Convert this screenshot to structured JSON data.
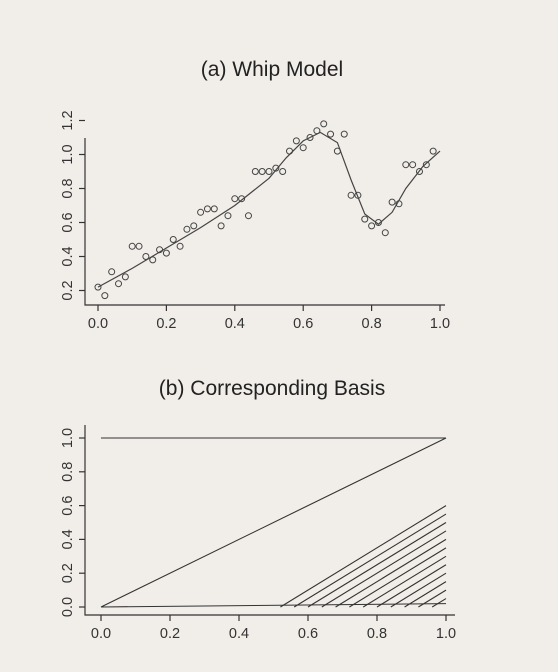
{
  "chart_data": [
    {
      "type": "scatter",
      "title": "(a) Whip Model",
      "xlim": [
        0.0,
        1.0
      ],
      "ylim": [
        0.15,
        1.25
      ],
      "x_ticks": [
        "0.0",
        "0.2",
        "0.4",
        "0.6",
        "0.8",
        "1.0"
      ],
      "y_ticks": [
        "0.2",
        "0.4",
        "0.6",
        "0.8",
        "1.0",
        "1.2"
      ],
      "series": [
        {
          "points": [
            [
              0.0,
              0.22
            ],
            [
              0.02,
              0.17
            ],
            [
              0.04,
              0.31
            ],
            [
              0.06,
              0.24
            ],
            [
              0.08,
              0.28
            ],
            [
              0.1,
              0.46
            ],
            [
              0.12,
              0.46
            ],
            [
              0.14,
              0.4
            ],
            [
              0.16,
              0.38
            ],
            [
              0.18,
              0.44
            ],
            [
              0.2,
              0.42
            ],
            [
              0.22,
              0.5
            ],
            [
              0.24,
              0.46
            ],
            [
              0.26,
              0.56
            ],
            [
              0.28,
              0.58
            ],
            [
              0.3,
              0.66
            ],
            [
              0.32,
              0.68
            ],
            [
              0.34,
              0.68
            ],
            [
              0.36,
              0.58
            ],
            [
              0.38,
              0.64
            ],
            [
              0.4,
              0.74
            ],
            [
              0.42,
              0.74
            ],
            [
              0.44,
              0.64
            ],
            [
              0.46,
              0.9
            ],
            [
              0.48,
              0.9
            ],
            [
              0.5,
              0.9
            ],
            [
              0.52,
              0.92
            ],
            [
              0.54,
              0.9
            ],
            [
              0.56,
              1.02
            ],
            [
              0.58,
              1.08
            ],
            [
              0.6,
              1.04
            ],
            [
              0.62,
              1.1
            ],
            [
              0.64,
              1.14
            ],
            [
              0.66,
              1.18
            ],
            [
              0.68,
              1.12
            ],
            [
              0.7,
              1.02
            ],
            [
              0.72,
              1.12
            ],
            [
              0.74,
              0.76
            ],
            [
              0.76,
              0.76
            ],
            [
              0.78,
              0.62
            ],
            [
              0.8,
              0.58
            ],
            [
              0.82,
              0.6
            ],
            [
              0.84,
              0.54
            ],
            [
              0.86,
              0.72
            ],
            [
              0.88,
              0.71
            ],
            [
              0.9,
              0.94
            ],
            [
              0.92,
              0.94
            ],
            [
              0.94,
              0.9
            ],
            [
              0.96,
              0.94
            ],
            [
              0.98,
              1.02
            ]
          ],
          "fit": [
            [
              0.0,
              0.22
            ],
            [
              0.1,
              0.33
            ],
            [
              0.2,
              0.45
            ],
            [
              0.3,
              0.57
            ],
            [
              0.4,
              0.7
            ],
            [
              0.5,
              0.86
            ],
            [
              0.55,
              0.98
            ],
            [
              0.6,
              1.08
            ],
            [
              0.65,
              1.13
            ],
            [
              0.7,
              1.07
            ],
            [
              0.74,
              0.85
            ],
            [
              0.78,
              0.65
            ],
            [
              0.82,
              0.59
            ],
            [
              0.86,
              0.66
            ],
            [
              0.9,
              0.8
            ],
            [
              0.95,
              0.93
            ],
            [
              1.0,
              1.02
            ]
          ]
        }
      ]
    },
    {
      "type": "line",
      "title": "(b) Corresponding Basis",
      "xlim": [
        0.0,
        1.0
      ],
      "ylim": [
        0.0,
        1.0
      ],
      "x_ticks": [
        "0.0",
        "0.2",
        "0.4",
        "0.6",
        "0.8",
        "1.0"
      ],
      "y_ticks": [
        "0.0",
        "0.2",
        "0.4",
        "0.6",
        "0.8",
        "1.0"
      ],
      "series": [
        {
          "x": [
            0.0,
            1.0
          ],
          "y": [
            1.0,
            1.0
          ]
        },
        {
          "x": [
            0.0,
            1.0
          ],
          "y": [
            0.0,
            1.0
          ]
        },
        {
          "x": [
            0.0,
            1.0
          ],
          "y": [
            0.0,
            0.02
          ]
        },
        {
          "knot": 0.52
        },
        {
          "knot": 0.56
        },
        {
          "knot": 0.6
        },
        {
          "knot": 0.64
        },
        {
          "knot": 0.68
        },
        {
          "knot": 0.72
        },
        {
          "knot": 0.76
        },
        {
          "knot": 0.8
        },
        {
          "knot": 0.84
        },
        {
          "knot": 0.88
        },
        {
          "knot": 0.92
        },
        {
          "knot": 0.96
        }
      ]
    }
  ]
}
